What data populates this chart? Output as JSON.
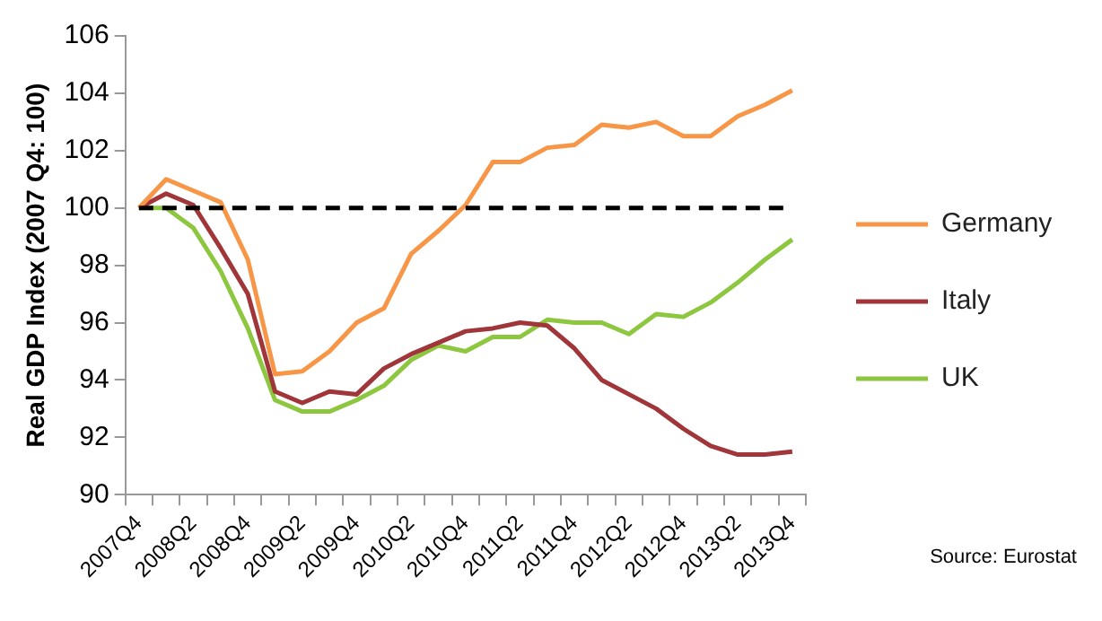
{
  "chart_data": {
    "type": "line",
    "ylabel": "Real GDP Index (2007 Q4: 100)",
    "categories": [
      "2007Q4",
      null,
      "2008Q2",
      null,
      "2008Q4",
      null,
      "2009Q2",
      null,
      "2009Q4",
      null,
      "2010Q2",
      null,
      "2010Q4",
      null,
      "2011Q2",
      null,
      "2011Q4",
      null,
      "2012Q2",
      null,
      "2012Q4",
      null,
      "2013Q2",
      null,
      "2013Q4"
    ],
    "series": [
      {
        "name": "Germany",
        "color": "#f79646",
        "values": [
          100,
          101.0,
          100.6,
          100.2,
          98.2,
          94.2,
          94.3,
          95.0,
          96.0,
          96.5,
          98.4,
          99.2,
          100.1,
          101.6,
          101.6,
          102.1,
          102.2,
          102.9,
          102.8,
          103.0,
          102.5,
          102.5,
          103.2,
          103.6,
          104.1
        ]
      },
      {
        "name": "Italy",
        "color": "#a0353a",
        "values": [
          100,
          100.5,
          100.1,
          98.6,
          97.0,
          93.6,
          93.2,
          93.6,
          93.5,
          94.4,
          94.9,
          95.3,
          95.7,
          95.8,
          96.0,
          95.9,
          95.1,
          94.0,
          93.5,
          93.0,
          92.3,
          91.7,
          91.4,
          91.4,
          91.5
        ]
      },
      {
        "name": "UK",
        "color": "#8dc63f",
        "values": [
          100,
          100.0,
          99.3,
          97.8,
          95.8,
          93.3,
          92.9,
          92.9,
          93.3,
          93.8,
          94.7,
          95.2,
          95.0,
          95.5,
          95.5,
          96.1,
          96.0,
          96.0,
          95.6,
          96.3,
          96.2,
          96.7,
          97.4,
          98.2,
          98.9
        ]
      }
    ],
    "ylim": [
      90,
      106
    ],
    "yticks": [
      90,
      92,
      94,
      96,
      98,
      100,
      102,
      104,
      106
    ],
    "grid": false,
    "legend": "right",
    "ref_lines": [
      {
        "axis": "y",
        "value": 100,
        "color": "#000000",
        "line_style": "dashed"
      }
    ],
    "annotations": [
      "Source: Eurostat"
    ]
  }
}
